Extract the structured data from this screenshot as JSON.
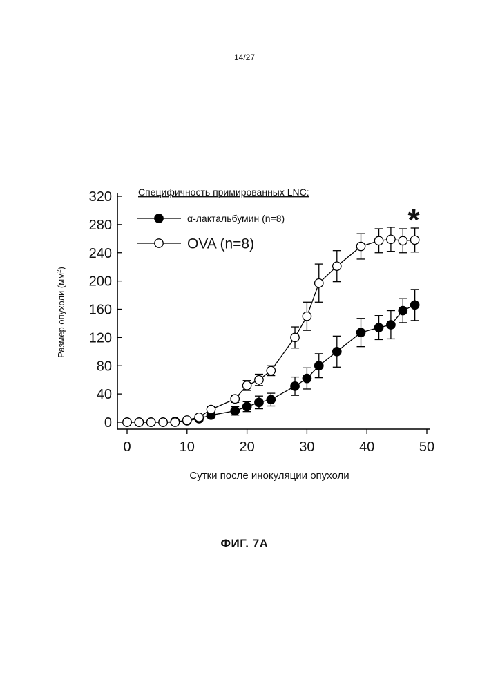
{
  "page": {
    "page_number": "14/27",
    "figure_caption": "ФИГ. 7А"
  },
  "chart_data": {
    "type": "line",
    "title": "",
    "xlabel": "Сутки после инокуляции опухоли",
    "ylabel_main": "Размер опухоли (мм",
    "ylabel_sup": "2",
    "ylabel_close": ")",
    "xlim": [
      0,
      50
    ],
    "ylim": [
      0,
      320
    ],
    "xticks": [
      0,
      10,
      20,
      30,
      40,
      50
    ],
    "yticks": [
      0,
      40,
      80,
      120,
      160,
      200,
      240,
      280,
      320
    ],
    "grid": false,
    "legend": {
      "title": "Специфичность примированных LNC:",
      "placement": "top-left"
    },
    "significance_marker": "*",
    "series": [
      {
        "name": "α-лактальбумин (n=8)",
        "marker": "filled-circle",
        "color": "#000000",
        "x": [
          0,
          2,
          4,
          6,
          8,
          10,
          12,
          14,
          18,
          20,
          22,
          24,
          28,
          30,
          32,
          35,
          39,
          42,
          44,
          46,
          48
        ],
        "y": [
          0,
          0,
          0,
          0,
          1,
          2,
          5,
          10,
          16,
          22,
          28,
          32,
          51,
          62,
          80,
          100,
          127,
          134,
          138,
          158,
          166
        ],
        "err": [
          0,
          0,
          0,
          0,
          0,
          2,
          3,
          4,
          6,
          7,
          9,
          9,
          13,
          15,
          17,
          22,
          20,
          17,
          20,
          17,
          22
        ]
      },
      {
        "name": "OVA (n=8)",
        "marker": "open-circle",
        "color": "#000000",
        "x": [
          0,
          2,
          4,
          6,
          8,
          10,
          12,
          14,
          18,
          20,
          22,
          24,
          28,
          30,
          32,
          35,
          39,
          42,
          44,
          46,
          48
        ],
        "y": [
          0,
          0,
          0,
          0,
          0,
          3,
          7,
          18,
          33,
          52,
          60,
          73,
          120,
          150,
          197,
          221,
          249,
          257,
          259,
          257,
          258
        ],
        "err": [
          0,
          0,
          0,
          0,
          0,
          2,
          3,
          4,
          5,
          7,
          8,
          7,
          15,
          20,
          27,
          22,
          18,
          17,
          17,
          17,
          17
        ]
      }
    ]
  }
}
